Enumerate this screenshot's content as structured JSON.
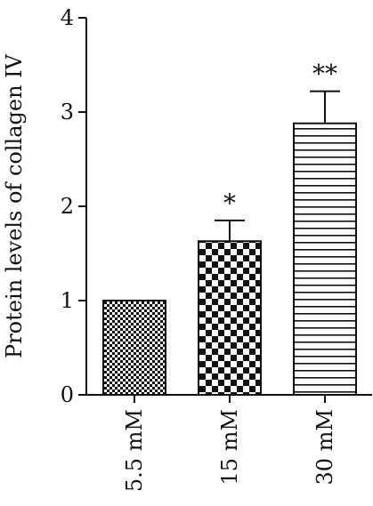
{
  "chart_data": {
    "type": "bar",
    "categories": [
      "5.5 mM",
      "15 mM",
      "30 mM"
    ],
    "values": [
      1.0,
      1.63,
      2.88
    ],
    "errors": [
      0,
      0.22,
      0.34
    ],
    "significance": [
      "",
      "*",
      "**"
    ],
    "bar_patterns": [
      "fine-checker",
      "coarse-checker",
      "horizontal-lines"
    ],
    "ylabel": "Protein levels of collagen IV",
    "xlabel": "",
    "ylim": [
      0,
      4
    ],
    "yticks": [
      "0",
      "1",
      "2",
      "3",
      "4"
    ],
    "grid": false,
    "legend": false,
    "colors": {
      "bar_fill": "#111111",
      "bar_background": "#ffffff",
      "axis": "#111111"
    }
  }
}
